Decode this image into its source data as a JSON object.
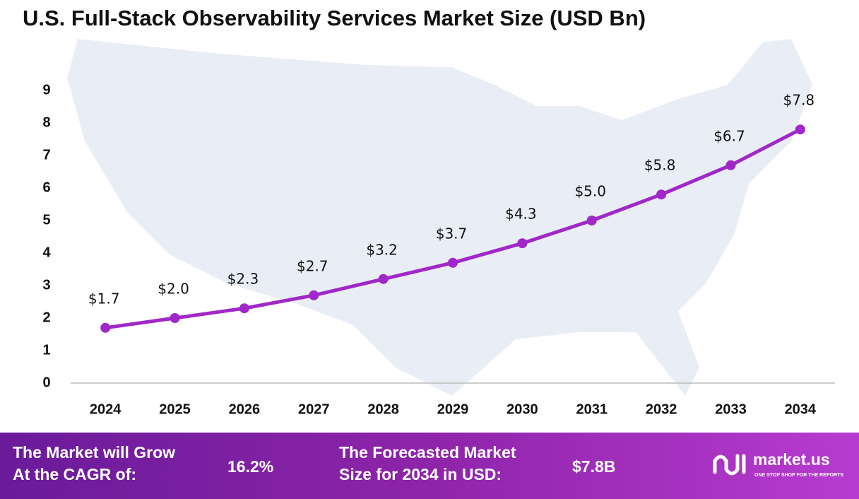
{
  "chart_data": {
    "type": "line",
    "title": "U.S. Full-Stack Observability Services Market Size (USD Bn)",
    "categories": [
      "2024",
      "2025",
      "2026",
      "2027",
      "2028",
      "2029",
      "2030",
      "2031",
      "2032",
      "2033",
      "2034"
    ],
    "series": [
      {
        "color": "#a128c8",
        "values": [
          1.7,
          2.0,
          2.3,
          2.7,
          3.2,
          3.7,
          4.3,
          5.0,
          5.8,
          6.7,
          7.8
        ],
        "value_labels": [
          "$1.7",
          "$2.0",
          "$2.3",
          "$2.7",
          "$3.2",
          "$3.7",
          "$4.3",
          "$5.0",
          "$5.8",
          "$6.7",
          "$7.8"
        ]
      }
    ],
    "ylim": [
      0,
      9
    ],
    "yticks": [
      0,
      1,
      2,
      3,
      4,
      5,
      6,
      7,
      8,
      9
    ],
    "grid": false
  },
  "footer": {
    "cagr_label": [
      "The Market will Grow",
      "At the CAGR of:"
    ],
    "cagr_value": "16.2%",
    "forecast_label": [
      "The Forecasted Market",
      "Size for 2034 in USD:"
    ],
    "forecast_value": "$7.8B",
    "brand": "market.us",
    "tagline": "ONE STOP SHOP FOR THE REPORTS"
  }
}
